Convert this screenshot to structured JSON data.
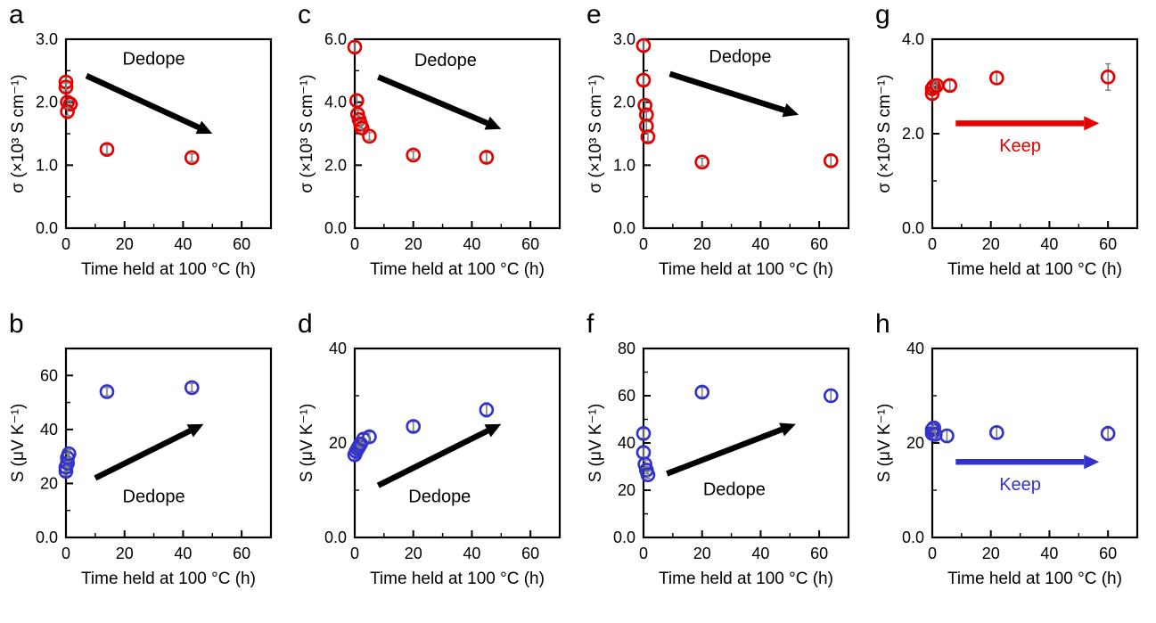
{
  "figure": {
    "background": "#ffffff"
  },
  "chart_data": [
    {
      "panel": "a",
      "type": "scatter",
      "marker_color": "#e50000",
      "xlabel": "Time held at 100 °C (h)",
      "ylabel": "σ (×10³ S cm⁻¹)",
      "xlim": [
        0,
        70
      ],
      "xticks": [
        0,
        20,
        40,
        60
      ],
      "xtick_labels": [
        "0",
        "20",
        "40",
        "60"
      ],
      "ylim": [
        0,
        3
      ],
      "yticks": [
        0,
        1,
        2,
        3
      ],
      "ytick_labels": [
        "0.0",
        "1.0",
        "2.0",
        "3.0"
      ],
      "points": [
        [
          0,
          2.32,
          0.08
        ],
        [
          0,
          2.24,
          0.06
        ],
        [
          0.5,
          2.0,
          0.06
        ],
        [
          1.5,
          1.97,
          0.06
        ],
        [
          0.5,
          1.85,
          0.06
        ],
        [
          14,
          1.25,
          0.07
        ],
        [
          43,
          1.12,
          0.06
        ]
      ],
      "annotation": {
        "text": "Dedope",
        "color": "#000000",
        "x": 30,
        "y": 2.6
      },
      "arrow": {
        "x1": 7,
        "y1": 2.42,
        "x2": 50,
        "y2": 1.5,
        "color": "#000000"
      }
    },
    {
      "panel": "c",
      "type": "scatter",
      "marker_color": "#e50000",
      "xlabel": "Time held at 100 °C (h)",
      "ylabel": "σ (×10³ S cm⁻¹)",
      "xlim": [
        0,
        70
      ],
      "xticks": [
        0,
        20,
        40,
        60
      ],
      "xtick_labels": [
        "0",
        "20",
        "40",
        "60"
      ],
      "ylim": [
        0,
        6
      ],
      "yticks": [
        0,
        2,
        4,
        6
      ],
      "ytick_labels": [
        "0.0",
        "2.0",
        "4.0",
        "6.0"
      ],
      "points": [
        [
          0,
          5.75,
          0.15
        ],
        [
          0.7,
          4.05,
          0.2
        ],
        [
          1,
          3.62,
          0.12
        ],
        [
          1.5,
          3.45,
          0.12
        ],
        [
          2,
          3.3,
          0.12
        ],
        [
          2.5,
          3.18,
          0.12
        ],
        [
          5,
          2.92,
          0.12
        ],
        [
          20,
          2.32,
          0.12
        ],
        [
          45,
          2.25,
          0.15
        ]
      ],
      "annotation": {
        "text": "Dedope",
        "color": "#000000",
        "x": 31,
        "y": 5.15
      },
      "arrow": {
        "x1": 8,
        "y1": 4.8,
        "x2": 50,
        "y2": 3.15,
        "color": "#000000"
      }
    },
    {
      "panel": "e",
      "type": "scatter",
      "marker_color": "#e50000",
      "xlabel": "Time held at 100 °C (h)",
      "ylabel": "σ (×10³ S cm⁻¹)",
      "xlim": [
        0,
        70
      ],
      "xticks": [
        0,
        20,
        40,
        60
      ],
      "xtick_labels": [
        "0",
        "20",
        "40",
        "60"
      ],
      "ylim": [
        0,
        3
      ],
      "yticks": [
        0,
        1,
        2,
        3
      ],
      "ytick_labels": [
        "0.0",
        "1.0",
        "2.0",
        "3.0"
      ],
      "points": [
        [
          0,
          2.9,
          0.08
        ],
        [
          0,
          2.35,
          0.08
        ],
        [
          0.5,
          1.95,
          0.07
        ],
        [
          1,
          1.8,
          0.07
        ],
        [
          1,
          1.62,
          0.07
        ],
        [
          1.5,
          1.45,
          0.07
        ],
        [
          20,
          1.05,
          0.06
        ],
        [
          64,
          1.07,
          0.08
        ]
      ],
      "annotation": {
        "text": "Dedope",
        "color": "#000000",
        "x": 33,
        "y": 2.63
      },
      "arrow": {
        "x1": 9,
        "y1": 2.45,
        "x2": 53,
        "y2": 1.8,
        "color": "#000000"
      }
    },
    {
      "panel": "g",
      "type": "scatter",
      "marker_color": "#e50000",
      "xlabel": "Time held at 100 °C (h)",
      "ylabel": "σ (×10³ S cm⁻¹)",
      "xlim": [
        0,
        70
      ],
      "xticks": [
        0,
        20,
        40,
        60
      ],
      "xtick_labels": [
        "0",
        "20",
        "40",
        "60"
      ],
      "ylim": [
        0,
        4
      ],
      "yticks": [
        0,
        2,
        4
      ],
      "ytick_labels": [
        "0.0",
        "2.0",
        "4.0"
      ],
      "points": [
        [
          0,
          2.85,
          0.1
        ],
        [
          0,
          2.95,
          0.1
        ],
        [
          0.5,
          3.0,
          0.1
        ],
        [
          1.5,
          3.02,
          0.1
        ],
        [
          6,
          3.02,
          0.1
        ],
        [
          22,
          3.18,
          0.12
        ],
        [
          60,
          3.2,
          0.28
        ]
      ],
      "annotation": {
        "text": "Keep",
        "color": "#e50000",
        "x": 30,
        "y": 1.62
      },
      "arrow": {
        "x1": 8,
        "y1": 2.22,
        "x2": 57,
        "y2": 2.22,
        "color": "#e50000"
      }
    },
    {
      "panel": "b",
      "type": "scatter",
      "marker_color": "#3333cc",
      "xlabel": "Time held at 100 °C (h)",
      "ylabel": "S (μV K⁻¹)",
      "xlim": [
        0,
        70
      ],
      "xticks": [
        0,
        20,
        40,
        60
      ],
      "xtick_labels": [
        "0",
        "20",
        "40",
        "60"
      ],
      "ylim": [
        0,
        70
      ],
      "yticks": [
        0,
        20,
        40,
        60
      ],
      "ytick_labels": [
        "0.0",
        "20",
        "40",
        "60"
      ],
      "points": [
        [
          0,
          24.5,
          1.5
        ],
        [
          0,
          26,
          1.5
        ],
        [
          0.5,
          27.5,
          1.5
        ],
        [
          0.5,
          29.5,
          1.5
        ],
        [
          1,
          31,
          1.5
        ],
        [
          14,
          54,
          1.5
        ],
        [
          43,
          55.5,
          1.5
        ]
      ],
      "annotation": {
        "text": "Dedope",
        "color": "#000000",
        "x": 30,
        "y": 13
      },
      "arrow": {
        "x1": 10,
        "y1": 22,
        "x2": 47,
        "y2": 42,
        "color": "#000000"
      }
    },
    {
      "panel": "d",
      "type": "scatter",
      "marker_color": "#3333cc",
      "xlabel": "Time held at 100 °C (h)",
      "ylabel": "S (μV K⁻¹)",
      "xlim": [
        0,
        70
      ],
      "xticks": [
        0,
        20,
        40,
        60
      ],
      "xtick_labels": [
        "0",
        "20",
        "40",
        "60"
      ],
      "ylim": [
        0,
        40
      ],
      "yticks": [
        0,
        20,
        40
      ],
      "ytick_labels": [
        "0.0",
        "20",
        "40"
      ],
      "points": [
        [
          0,
          17.5,
          1
        ],
        [
          0.5,
          18.2,
          1
        ],
        [
          1,
          18.8,
          1
        ],
        [
          1.5,
          19.3,
          1
        ],
        [
          2,
          19.8,
          1
        ],
        [
          3,
          20.8,
          1
        ],
        [
          5,
          21.3,
          1
        ],
        [
          20,
          23.5,
          1
        ],
        [
          45,
          27,
          1.5
        ]
      ],
      "annotation": {
        "text": "Dedope",
        "color": "#000000",
        "x": 29,
        "y": 7.5
      },
      "arrow": {
        "x1": 8,
        "y1": 11,
        "x2": 50,
        "y2": 24,
        "color": "#000000"
      }
    },
    {
      "panel": "f",
      "type": "scatter",
      "marker_color": "#3333cc",
      "xlabel": "Time held at 100 °C (h)",
      "ylabel": "S (μV K⁻¹)",
      "xlim": [
        0,
        70
      ],
      "xticks": [
        0,
        20,
        40,
        60
      ],
      "xtick_labels": [
        "0",
        "20",
        "40",
        "60"
      ],
      "ylim": [
        0,
        80
      ],
      "yticks": [
        0,
        20,
        40,
        60,
        80
      ],
      "ytick_labels": [
        "0.0",
        "20",
        "40",
        "60",
        "80"
      ],
      "points": [
        [
          0,
          44,
          2
        ],
        [
          0,
          36,
          2
        ],
        [
          0.5,
          31,
          1.5
        ],
        [
          1,
          28.5,
          1.5
        ],
        [
          1.5,
          26.5,
          1.5
        ],
        [
          20,
          61.5,
          2
        ],
        [
          64,
          60,
          2.5
        ]
      ],
      "annotation": {
        "text": "Dedope",
        "color": "#000000",
        "x": 31,
        "y": 18
      },
      "arrow": {
        "x1": 8,
        "y1": 27,
        "x2": 52,
        "y2": 48,
        "color": "#000000"
      }
    },
    {
      "panel": "h",
      "type": "scatter",
      "marker_color": "#3333cc",
      "xlabel": "Time held at 100 °C (h)",
      "ylabel": "S (μV K⁻¹)",
      "xlim": [
        0,
        70
      ],
      "xticks": [
        0,
        20,
        40,
        60
      ],
      "xtick_labels": [
        "0",
        "20",
        "40",
        "60"
      ],
      "ylim": [
        0,
        40
      ],
      "yticks": [
        0,
        20,
        40
      ],
      "ytick_labels": [
        "0.0",
        "20",
        "40"
      ],
      "points": [
        [
          0,
          22,
          1.2
        ],
        [
          0,
          22.8,
          1.2
        ],
        [
          0.5,
          23.2,
          1.2
        ],
        [
          1,
          21.8,
          1.2
        ],
        [
          5,
          21.5,
          1.2
        ],
        [
          22,
          22.2,
          1.2
        ],
        [
          60,
          22,
          1.5
        ]
      ],
      "annotation": {
        "text": "Keep",
        "color": "#3333cc",
        "x": 30,
        "y": 10
      },
      "arrow": {
        "x1": 8,
        "y1": 16,
        "x2": 57,
        "y2": 16,
        "color": "#3333cc"
      }
    }
  ]
}
